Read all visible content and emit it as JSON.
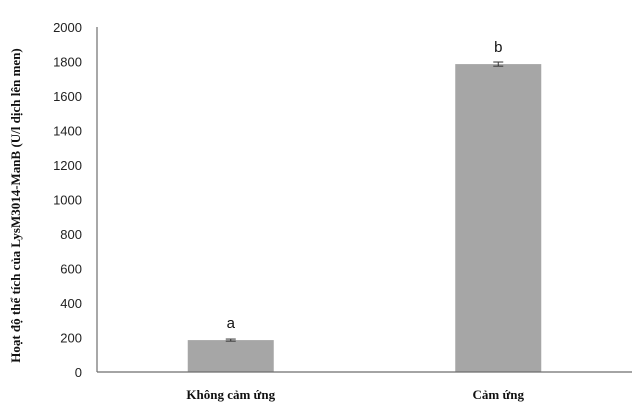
{
  "chart_data": {
    "type": "bar",
    "title": "",
    "xlabel": "",
    "ylabel": "Hoạt độ thể tích của LysM3014-ManB (U/l dịch lên men)",
    "categories": [
      "Không cảm ứng",
      "Cảm ứng"
    ],
    "values": [
      185,
      1785
    ],
    "errors": [
      6,
      12
    ],
    "bar_labels": [
      "a",
      "b"
    ],
    "ylim": [
      0,
      2000
    ],
    "yticks": [
      "0",
      "200",
      "400",
      "600",
      "800",
      "1000",
      "1200",
      "1400",
      "1600",
      "1800",
      "2000"
    ],
    "grid": false,
    "legend": "none",
    "bar_color": "#a6a6a6",
    "axis_color": "#6e6e6e"
  }
}
